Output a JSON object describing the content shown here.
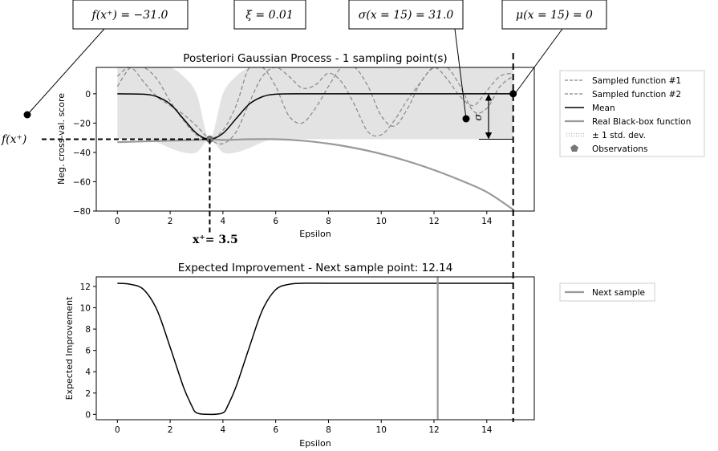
{
  "annotations": {
    "f_best_box": "f(x⁺) = −31.0",
    "xi_box": "ξ = 0.01",
    "sigma_box": "σ(x = 15) = 31.0",
    "mu_box": "μ(x = 15) = 0",
    "f_best_side_label": "f(x⁺)",
    "x_best_label": "x⁺= 3.5",
    "sigma_symbol": "σ"
  },
  "legend_top": [
    {
      "label": "Sampled function #1",
      "style": "dashed",
      "color": "#888888"
    },
    {
      "label": "Sampled function #2",
      "style": "dashed",
      "color": "#888888"
    },
    {
      "label": "Mean",
      "style": "solid",
      "color": "#000000"
    },
    {
      "label": "Real Black-box function",
      "style": "solid",
      "color": "#999999"
    },
    {
      "label": "± 1 std. dev.",
      "style": "band",
      "color": "#dddddd"
    },
    {
      "label": "Observations",
      "style": "marker",
      "color": "#777777"
    }
  ],
  "legend_bottom": [
    {
      "label": "Next sample",
      "style": "solid",
      "color": "#999999"
    }
  ],
  "chart_data": [
    {
      "type": "line",
      "title": "Posteriori Gaussian Process - 1 sampling point(s)",
      "xlabel": "Epsilon",
      "ylabel": "Neg. cross-val. score",
      "xlim": [
        -0.8,
        15.8
      ],
      "ylim": [
        -80,
        18
      ],
      "xticks": [
        0,
        2,
        4,
        6,
        8,
        10,
        12,
        14
      ],
      "yticks": [
        0,
        -20,
        -40,
        -60,
        -80
      ],
      "grid": false,
      "legend_placement": "outside-right",
      "series": [
        {
          "name": "Mean",
          "x": [
            0,
            1,
            1.5,
            2,
            2.5,
            3,
            3.5,
            4,
            4.5,
            5,
            5.5,
            6,
            7,
            8,
            10,
            12,
            14,
            15
          ],
          "y": [
            0,
            -0.3,
            -2,
            -7,
            -17,
            -27,
            -31,
            -27,
            -17,
            -7,
            -2,
            -0.3,
            0,
            0,
            0,
            0,
            0,
            0
          ]
        },
        {
          "name": "Real Black-box function",
          "x": [
            0,
            1,
            2,
            3,
            3.5,
            4,
            5,
            6,
            7,
            8,
            9,
            10,
            11,
            12,
            13,
            14,
            15
          ],
          "y": [
            -33,
            -32.5,
            -32,
            -31.5,
            -31,
            -31.5,
            -31,
            -31,
            -32,
            -34,
            -37,
            -41,
            -46,
            -52,
            -59,
            -67,
            -79
          ]
        },
        {
          "name": "Sampled function #1",
          "x": [
            0,
            0.5,
            1,
            1.5,
            2,
            2.5,
            3,
            3.5,
            4,
            4.5,
            5,
            5.5,
            6,
            6.5,
            7,
            7.5,
            8,
            8.5,
            9,
            9.5,
            10,
            10.5,
            11,
            11.5,
            12,
            12.5,
            13,
            13.5,
            14,
            14.5,
            15
          ],
          "y": [
            5,
            18,
            18,
            10,
            -5,
            -18,
            -28,
            -31,
            -25,
            -8,
            18,
            18,
            5,
            -15,
            -20,
            -10,
            5,
            18,
            18,
            5,
            -15,
            -22,
            -10,
            8,
            18,
            18,
            5,
            -12,
            -10,
            5,
            12
          ]
        },
        {
          "name": "Sampled function #2",
          "x": [
            0,
            0.5,
            1,
            1.5,
            2,
            2.5,
            3,
            3.5,
            4,
            4.5,
            5,
            5.5,
            6,
            6.5,
            7,
            7.5,
            8,
            8.5,
            9,
            9.5,
            10,
            10.5,
            11,
            11.5,
            12,
            12.5,
            13,
            13.5,
            14,
            14.5,
            15
          ],
          "y": [
            12,
            18,
            8,
            -2,
            -8,
            -14,
            -22,
            -31,
            -34,
            -26,
            -6,
            12,
            18,
            12,
            4,
            6,
            14,
            8,
            -8,
            -26,
            -28,
            -18,
            -4,
            8,
            18,
            10,
            -2,
            -8,
            2,
            12,
            14
          ]
        }
      ],
      "std_band": {
        "x": [
          0,
          1,
          1.5,
          2,
          2.5,
          3,
          3.5,
          4,
          4.5,
          5,
          5.5,
          6,
          7,
          15
        ],
        "upper": [
          18,
          18,
          18,
          18,
          12,
          0,
          -31,
          0,
          12,
          18,
          18,
          18,
          18,
          18
        ],
        "lower": [
          -31,
          -31,
          -33,
          -37,
          -40,
          -40,
          -31,
          -40,
          -40,
          -37,
          -33,
          -31,
          -31,
          -31
        ]
      },
      "observations": [
        {
          "x": 3.5,
          "y": -31
        }
      ]
    },
    {
      "type": "line",
      "title": "Expected Improvement - Next sample point: 12.14",
      "xlabel": "Epsilon",
      "ylabel": "Expected Improvement",
      "xlim": [
        -0.8,
        15.8
      ],
      "ylim": [
        -0.5,
        12.9
      ],
      "xticks": [
        0,
        2,
        4,
        6,
        8,
        10,
        12,
        14
      ],
      "yticks": [
        0,
        2,
        4,
        6,
        8,
        10,
        12
      ],
      "grid": false,
      "legend_placement": "outside-right",
      "series": [
        {
          "name": "Expected Improvement",
          "x": [
            0,
            0.5,
            1,
            1.5,
            2,
            2.5,
            2.8,
            3,
            3.5,
            4,
            4.2,
            4.5,
            5,
            5.5,
            6,
            6.5,
            7,
            8,
            10,
            12,
            14,
            15
          ],
          "y": [
            12.3,
            12.2,
            11.7,
            9.8,
            6.3,
            2.6,
            0.9,
            0.15,
            0,
            0.15,
            0.9,
            2.6,
            6.3,
            9.8,
            11.7,
            12.2,
            12.3,
            12.3,
            12.3,
            12.3,
            12.3,
            12.3
          ]
        }
      ],
      "next_sample": 12.14
    }
  ]
}
